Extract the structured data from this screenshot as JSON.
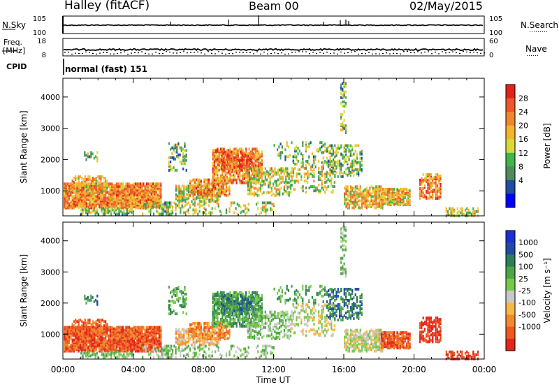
{
  "header": {
    "station": "Halley (fitACF)",
    "beam": "Beam 00",
    "date": "02/May/2015"
  },
  "labels": {
    "nsky": "N.Sky",
    "freq_line1": "Freq.",
    "freq_line2": "[MHz]",
    "cpid": "CPID",
    "nsearch": "N.Search",
    "nsearch_dots": "………",
    "nave": "Nave",
    "nave_dots": "……",
    "mode": "normal (fast) 151"
  },
  "colors": {
    "power": [
      "#0000ff",
      "#1f4ea1",
      "#4f8a5c",
      "#3fb54b",
      "#d8d83a",
      "#f4b52e",
      "#f0862e",
      "#ed5628",
      "#e1221b"
    ],
    "velocity": [
      "#e2261d",
      "#ee5a1e",
      "#f08a2e",
      "#f4b94a",
      "#c8c8c8",
      "#75c94a",
      "#4ea446",
      "#2e7e5a",
      "#204aa5",
      "#1d2ed3"
    ]
  },
  "chart_data": [
    {
      "type": "line",
      "name": "noise-sky",
      "yticks": [
        "10^5",
        "10^0"
      ],
      "yticks_right": [
        "10^5",
        "10^0"
      ],
      "ylabel": "N.Sky",
      "ylabel_right": "N.Search"
    },
    {
      "type": "line",
      "name": "frequency",
      "yticks": [
        "18",
        "8"
      ],
      "yticks_right": [
        "60",
        "0"
      ],
      "ylabel": "Freq. [MHz]",
      "ylabel_right": "Nave"
    },
    {
      "type": "heatmap",
      "name": "power",
      "ylabel": "Slant Range [km]",
      "yticks": [
        1000,
        2000,
        3000,
        4000
      ],
      "ylim": [
        200,
        4600
      ],
      "cbar_label": "Power [dB]",
      "cbar_ticks": [
        "4",
        "8",
        "12",
        "16",
        "20",
        "24",
        "28"
      ]
    },
    {
      "type": "heatmap",
      "name": "velocity",
      "ylabel": "Slant Range [km]",
      "yticks": [
        1000,
        2000,
        3000,
        4000
      ],
      "ylim": [
        200,
        4600
      ],
      "xlabel": "Time UT",
      "xticks": [
        "00:00",
        "04:00",
        "08:00",
        "12:00",
        "16:00",
        "20:00",
        "00:00"
      ],
      "cbar_label": "Velocity [m s⁻¹]",
      "cbar_ticks": [
        "1000",
        "500",
        "100",
        "25",
        "-25",
        "-100",
        "-500",
        "-1000"
      ]
    }
  ]
}
